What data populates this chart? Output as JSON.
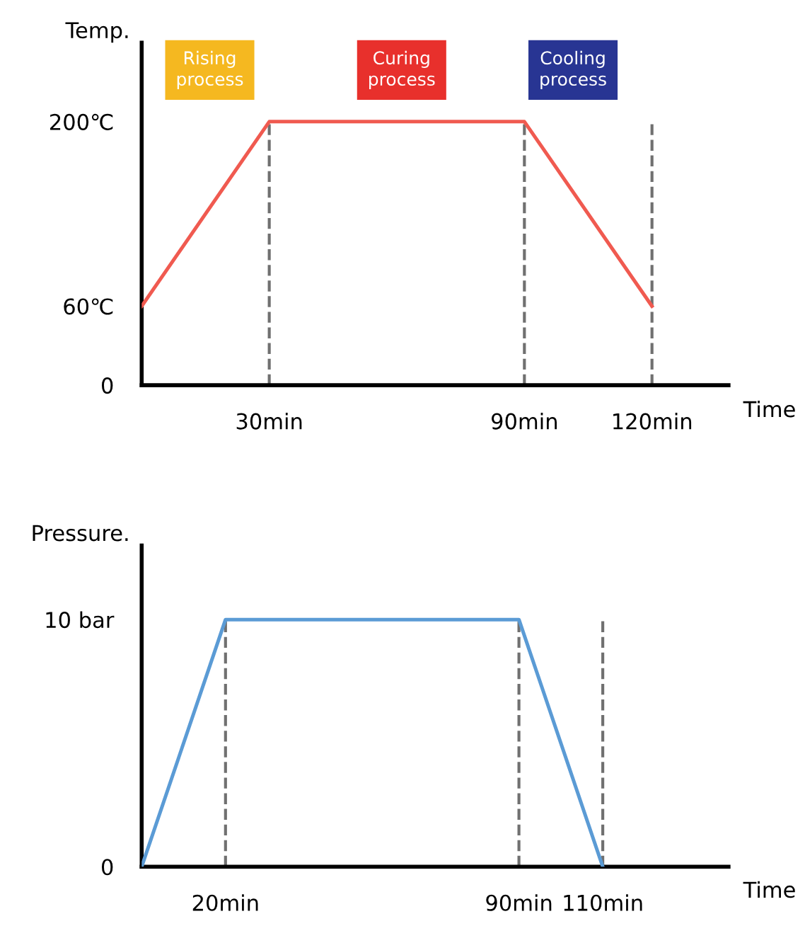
{
  "chart_data": [
    {
      "type": "line",
      "ylabel": "Temp.",
      "xlabel": "Time",
      "x": [
        0,
        30,
        90,
        120
      ],
      "series": [
        {
          "color": "#f05a50",
          "values": [
            60,
            200,
            200,
            60
          ]
        }
      ],
      "xlim": [
        0,
        138
      ],
      "xticks": [
        {
          "value": 30,
          "label": "30min"
        },
        {
          "value": 90,
          "label": "90min"
        },
        {
          "value": 120,
          "label": "120min"
        }
      ],
      "ylim": [
        0,
        260
      ],
      "yticks": [
        0,
        {
          "value": 60,
          "label": "60℃"
        },
        {
          "value": 200,
          "label": "200℃"
        }
      ],
      "ref_lines": [
        {
          "axis": "x",
          "value": 30,
          "color": "#707070",
          "line_style": "dashed"
        },
        {
          "axis": "x",
          "value": 90,
          "color": "#707070",
          "line_style": "dashed"
        },
        {
          "axis": "x",
          "value": 120,
          "color": "#707070",
          "line_style": "dashed"
        }
      ],
      "annotations": [
        "Rising\nprocess",
        "Curing\nprocess",
        "Cooling\nprocess"
      ],
      "grid": false,
      "legend": false,
      "marker": "none",
      "line_style": "solid"
    },
    {
      "type": "line",
      "ylabel": "Pressure.",
      "xlabel": "Time",
      "x": [
        0,
        20,
        90,
        110
      ],
      "series": [
        {
          "color": "#5b9bd5",
          "values": [
            0,
            10,
            10,
            0
          ]
        }
      ],
      "xlim": [
        0,
        140
      ],
      "xticks": [
        {
          "value": 20,
          "label": "20min"
        },
        {
          "value": 90,
          "label": "90min"
        },
        {
          "value": 110,
          "label": "110min"
        }
      ],
      "ylim": [
        0,
        13
      ],
      "yticks": [
        0,
        {
          "value": 10,
          "label": "10 bar"
        }
      ],
      "ref_lines": [
        {
          "axis": "x",
          "value": 20,
          "color": "#707070",
          "line_style": "dashed"
        },
        {
          "axis": "x",
          "value": 90,
          "color": "#707070",
          "line_style": "dashed"
        },
        {
          "axis": "x",
          "value": 110,
          "color": "#707070",
          "line_style": "dashed"
        }
      ],
      "grid": false,
      "legend": false,
      "marker": "none",
      "line_style": "solid"
    }
  ]
}
